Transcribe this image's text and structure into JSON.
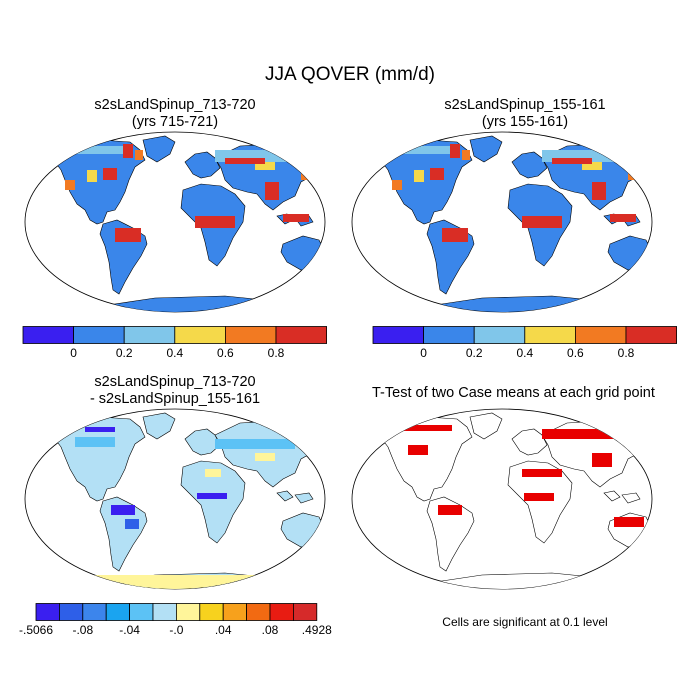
{
  "main_title": "JJA QOVER (mm/d)",
  "panels": [
    {
      "id": "tl",
      "title_line1": "s2sLandSpinup_713-720",
      "title_line2": "(yrs 715-721)"
    },
    {
      "id": "tr",
      "title_line1": "s2sLandSpinup_155-161",
      "title_line2": "(yrs 155-161)"
    },
    {
      "id": "bl",
      "title_line1": "s2sLandSpinup_713-720",
      "title_line2": "- s2sLandSpinup_155-161"
    },
    {
      "id": "br",
      "title_line1": "T-Test of two Case means at each grid point",
      "title_line2": ""
    }
  ],
  "colorbar_top": {
    "colors": [
      "#3a1ff0",
      "#3a86ea",
      "#80c6ea",
      "#f5d94a",
      "#f27a22",
      "#d92d25"
    ],
    "labels": [
      "0",
      "0.2",
      "0.4",
      "0.6",
      "0.8"
    ]
  },
  "colorbar_diff": {
    "colors": [
      "#3a1ff0",
      "#2e5fe8",
      "#3c85ec",
      "#1aa4f0",
      "#5cc2f5",
      "#b3e0f5",
      "#fff59a",
      "#f7d21e",
      "#f7a11c",
      "#f26a12",
      "#e81c12",
      "#d62a2a"
    ],
    "labels": [
      ".5066",
      "-.08",
      "-.04",
      "-.0",
      ".04",
      ".08",
      ".4928"
    ],
    "first_label_prefix": "-"
  },
  "significance_note": "Cells are significant at 0.1 level",
  "colors": {
    "sig": "#e80000",
    "coast": "#000000"
  }
}
